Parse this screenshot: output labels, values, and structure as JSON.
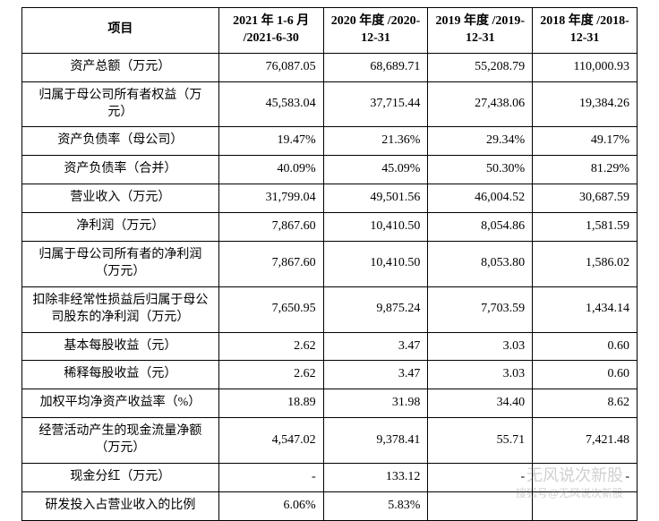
{
  "table": {
    "header": {
      "item": "项目",
      "periods": [
        "2021 年 1-6 月 /2021-6-30",
        "2020 年度 /2020-12-31",
        "2019 年度 /2019-12-31",
        "2018 年度 /2018-12-31"
      ]
    },
    "columns": {
      "item_width_pct": 32,
      "period_width_pct": 17,
      "alignment": {
        "label": "center",
        "value": "right"
      }
    },
    "rows": [
      {
        "label": "资产总额（万元）",
        "values": [
          "76,087.05",
          "68,689.71",
          "55,208.79",
          "110,000.93"
        ]
      },
      {
        "label": "归属于母公司所有者权益（万元）",
        "values": [
          "45,583.04",
          "37,715.44",
          "27,438.06",
          "19,384.26"
        ]
      },
      {
        "label": "资产负债率（母公司）",
        "values": [
          "19.47%",
          "21.36%",
          "29.34%",
          "49.17%"
        ]
      },
      {
        "label": "资产负债率（合并）",
        "values": [
          "40.09%",
          "45.09%",
          "50.30%",
          "81.29%"
        ]
      },
      {
        "label": "营业收入（万元）",
        "values": [
          "31,799.04",
          "49,501.56",
          "46,004.52",
          "30,687.59"
        ]
      },
      {
        "label": "净利润（万元）",
        "values": [
          "7,867.60",
          "10,410.50",
          "8,054.86",
          "1,581.59"
        ]
      },
      {
        "label": "归属于母公司所有者的净利润（万元）",
        "values": [
          "7,867.60",
          "10,410.50",
          "8,053.80",
          "1,586.02"
        ]
      },
      {
        "label": "扣除非经常性损益后归属于母公司股东的净利润（万元）",
        "values": [
          "7,650.95",
          "9,875.24",
          "7,703.59",
          "1,434.14"
        ]
      },
      {
        "label": "基本每股收益（元）",
        "values": [
          "2.62",
          "3.47",
          "3.03",
          "0.60"
        ]
      },
      {
        "label": "稀释每股收益（元）",
        "values": [
          "2.62",
          "3.47",
          "3.03",
          "0.60"
        ]
      },
      {
        "label": "加权平均净资产收益率（%）",
        "values": [
          "18.89",
          "31.98",
          "34.40",
          "8.62"
        ]
      },
      {
        "label": "经营活动产生的现金流量净额（万元）",
        "values": [
          "4,547.02",
          "9,378.41",
          "55.71",
          "7,421.48"
        ]
      },
      {
        "label": "现金分红（万元）",
        "values": [
          "-",
          "133.12",
          "-",
          "-"
        ]
      },
      {
        "label": "研发投入占营业收入的比例",
        "values": [
          "6.06%",
          "5.83%",
          "",
          ""
        ]
      }
    ],
    "style": {
      "border_color": "#000000",
      "background_color": "#ffffff",
      "header_fontsize": 14,
      "cell_fontsize": 14,
      "font_family_cn": "SimSun",
      "font_family_num": "Times New Roman"
    }
  },
  "watermark": {
    "main": "无风说次新股",
    "sub": "搜狐号@无风说次新股"
  }
}
